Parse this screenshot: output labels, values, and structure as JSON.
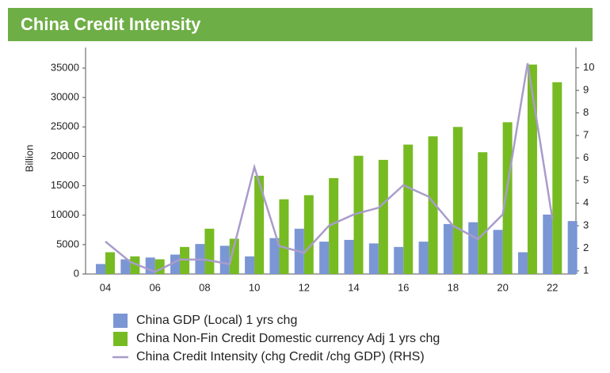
{
  "chart_data": {
    "type": "bar",
    "title": "China Credit Intensity",
    "ylabel": "Billion",
    "categories": [
      "04",
      null,
      "06",
      null,
      "08",
      null,
      "10",
      null,
      "12",
      null,
      "14",
      null,
      "16",
      null,
      "18",
      null,
      "20",
      null,
      "22",
      null
    ],
    "series": [
      {
        "name": "China GDP (Local) 1 yrs chg",
        "color": "#7b96d4",
        "type": "bar",
        "values": [
          1700,
          2500,
          2800,
          3300,
          5100,
          4800,
          3000,
          6100,
          7700,
          5500,
          5800,
          5200,
          4600,
          5500,
          8500,
          8800,
          7500,
          3700,
          10100,
          9000
        ]
      },
      {
        "name": "China Non-Fin Credit Domestic currency Adj 1 yrs chg",
        "color": "#77bb22",
        "type": "bar",
        "values": [
          3700,
          3000,
          2500,
          4600,
          7700,
          6000,
          16700,
          12700,
          13400,
          16300,
          20100,
          19400,
          22000,
          23400,
          25000,
          20700,
          25800,
          35600,
          32600,
          null
        ]
      },
      {
        "name": "China Credit Intensity (chg Credit /chg GDP) (RHS)",
        "color": "#a99ccb",
        "type": "line",
        "axis": "y2",
        "values": [
          2.3,
          1.4,
          0.95,
          1.5,
          1.5,
          1.3,
          5.6,
          2.1,
          1.8,
          3.0,
          3.5,
          3.8,
          4.8,
          4.3,
          3.0,
          2.4,
          3.5,
          10.2,
          3.3,
          null
        ]
      }
    ],
    "ylim": [
      0,
      38500
    ],
    "yticks": [
      0,
      5000,
      10000,
      15000,
      20000,
      25000,
      30000,
      35000
    ],
    "y2lim": [
      0.86,
      10.9
    ],
    "y2ticks": [
      1,
      2,
      3,
      4,
      5,
      6,
      7,
      8,
      9,
      10
    ],
    "grid": false
  }
}
